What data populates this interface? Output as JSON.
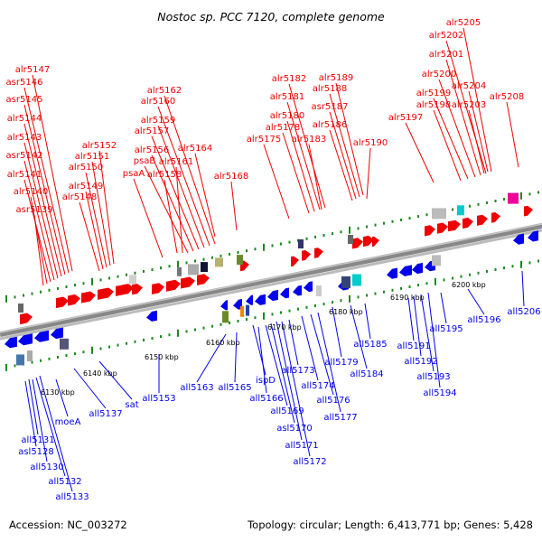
{
  "title": "Nostoc sp. PCC 7120, complete genome",
  "footer": {
    "accession": "Accession: NC_003272",
    "summary": "Topology: circular; Length: 6,413,771 bp; Genes: 5,428"
  },
  "colors": {
    "forward": "#ee0000",
    "reverse": "#0000ee",
    "backbone": "#888888",
    "tick": "#1a8a1a"
  },
  "scale_labels": [
    "6130 kbp",
    "6140 kbp",
    "6150 kbp",
    "6160 kbp",
    "6170 kbp",
    "6180 kbp",
    "6190 kbp",
    "6200 kbp"
  ],
  "forward_genes": [
    "alr5147",
    "asr5146",
    "asr5145",
    "alr5144",
    "alr5143",
    "asr5142",
    "alr5141",
    "alr5140",
    "asr5139",
    "alr5152",
    "alr5151",
    "alr5150",
    "alr5149",
    "alr5148",
    "alr5162",
    "alr5160",
    "alr5159",
    "alr5157",
    "alr5156",
    "psaB",
    "psaA",
    "alr5158",
    "alr5161",
    "alr5164",
    "alr5168",
    "alr5182",
    "alr5181",
    "alr5180",
    "alr5178",
    "alr5175",
    "alr5183",
    "alr5189",
    "alr5188",
    "asr5187",
    "alr5186",
    "alr5190",
    "alr5205",
    "alr5202",
    "alr5201",
    "alr5200",
    "alr5199",
    "alr5198",
    "alr5197",
    "alr5204",
    "alr5203",
    "alr5208"
  ],
  "reverse_genes": [
    "all5131",
    "asl5128",
    "all5130",
    "all5132",
    "all5133",
    "moeA",
    "all5137",
    "sat",
    "all5153",
    "all5163",
    "all5165",
    "ispD",
    "all5166",
    "all5169",
    "asl5170",
    "all5171",
    "all5172",
    "all5173",
    "all5174",
    "all5176",
    "all5177",
    "all5179",
    "all5184",
    "all5185",
    "all5191",
    "all5192",
    "all5193",
    "all5194",
    "all5195",
    "all5196",
    "all5206"
  ]
}
